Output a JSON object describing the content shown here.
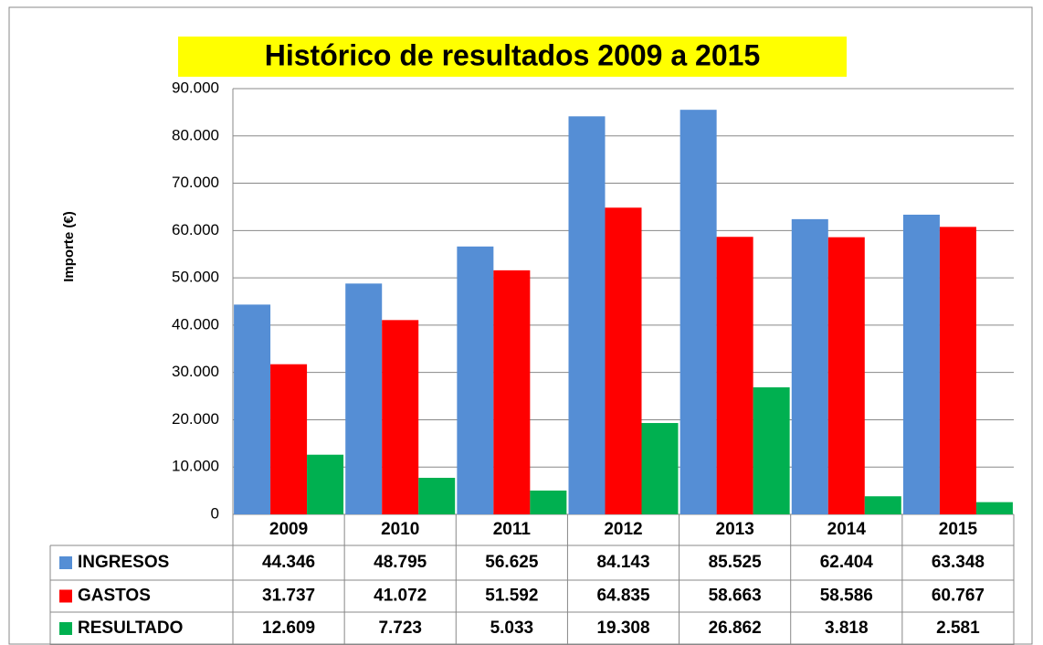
{
  "chart_data": {
    "type": "bar",
    "title": "Histórico  de resultados  2009 a 2015",
    "y_label": "Importe (€)",
    "categories": [
      "2009",
      "2010",
      "2011",
      "2012",
      "2013",
      "2014",
      "2015"
    ],
    "series": [
      {
        "name": "INGRESOS",
        "color": "#558ed5",
        "values": [
          44346,
          48795,
          56625,
          84143,
          85525,
          62404,
          63348
        ],
        "value_labels": [
          "44.346",
          "48.795",
          "56.625",
          "84.143",
          "85.525",
          "62.404",
          "63.348"
        ]
      },
      {
        "name": "GASTOS",
        "color": "#ff0000",
        "values": [
          31737,
          41072,
          51592,
          64835,
          58663,
          58586,
          60767
        ],
        "value_labels": [
          "31.737",
          "41.072",
          "51.592",
          "64.835",
          "58.663",
          "58.586",
          "60.767"
        ]
      },
      {
        "name": "RESULTADO",
        "color": "#00b050",
        "values": [
          12609,
          7723,
          5033,
          19308,
          26862,
          3818,
          2581
        ],
        "value_labels": [
          "12.609",
          "7.723",
          "5.033",
          "19.308",
          "26.862",
          "3.818",
          "2.581"
        ]
      }
    ],
    "ylim": [
      0,
      90000
    ],
    "yticks": [
      0,
      {
        "value": 10000,
        "label": "10.000"
      },
      {
        "value": 20000,
        "label": "20.000"
      },
      {
        "value": 30000,
        "label": "30.000"
      },
      {
        "value": 40000,
        "label": "40.000"
      },
      {
        "value": 50000,
        "label": "50.000"
      },
      {
        "value": 60000,
        "label": "60.000"
      },
      {
        "value": 70000,
        "label": "70.000"
      },
      {
        "value": 80000,
        "label": "80.000"
      },
      {
        "value": 90000,
        "label": "90.000"
      }
    ],
    "grid": true
  }
}
